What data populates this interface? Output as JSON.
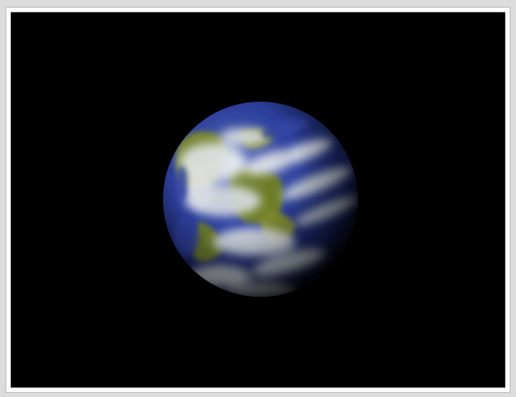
{
  "scene": {
    "object_icon": "planet-earth-icon",
    "colors": {
      "background": "#000000",
      "ocean": "#2c3f9a",
      "land": "#7d8f2e",
      "cloud": "#e8ecf0",
      "frame": "#dcdcdc"
    }
  }
}
